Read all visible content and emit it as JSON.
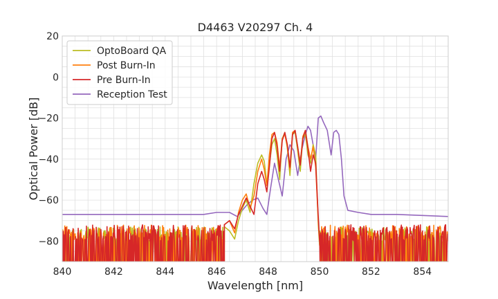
{
  "chart_data": {
    "type": "line",
    "title": "D4463 V20297 Ch. 4",
    "xlabel": "Wavelength [nm]",
    "ylabel": "Optical Power [dB]",
    "xlim": [
      840,
      855
    ],
    "ylim": [
      -90,
      20
    ],
    "xticks": [
      "840",
      "842",
      "844",
      "846",
      "848",
      "850",
      "852",
      "854"
    ],
    "yticks": [
      "20",
      "0",
      "−20",
      "−40",
      "−60",
      "−80"
    ],
    "grid": true,
    "legend_position": "top-left",
    "series": [
      {
        "name": "OptoBoard QA",
        "color": "#bcbd22",
        "noise": {
          "x_start": 840,
          "x_end": 846.3,
          "y_low": -90,
          "y_high": -73
        },
        "x": [
          846.3,
          846.5,
          846.7,
          846.85,
          847.0,
          847.15,
          847.3,
          847.45,
          847.6,
          847.75,
          847.85,
          847.95,
          848.05,
          848.15,
          848.25,
          848.35,
          848.45,
          848.55,
          848.65,
          848.75,
          848.85,
          848.95,
          849.05,
          849.15,
          849.25,
          849.35,
          849.45,
          849.55,
          849.65,
          849.75,
          849.85,
          849.95,
          850.0
        ],
        "y": [
          -73,
          -75,
          -79,
          -70,
          -64,
          -60,
          -66,
          -52,
          -42,
          -38,
          -41,
          -52,
          -43,
          -33,
          -30,
          -38,
          -50,
          -30,
          -27,
          -35,
          -48,
          -28,
          -27,
          -36,
          -46,
          -30,
          -28,
          -38,
          -42,
          -33,
          -38,
          -72,
          -82
        ],
        "noise_after": {
          "x_start": 850.0,
          "x_end": 855,
          "y_low": -90,
          "y_high": -73
        }
      },
      {
        "name": "Post Burn-In",
        "color": "#ff7f0e",
        "noise": {
          "x_start": 840,
          "x_end": 846.3,
          "y_low": -90,
          "y_high": -72
        },
        "x": [
          846.3,
          846.5,
          846.7,
          846.85,
          847.0,
          847.15,
          847.3,
          847.45,
          847.6,
          847.75,
          847.85,
          847.95,
          848.05,
          848.15,
          848.25,
          848.35,
          848.45,
          848.55,
          848.65,
          848.75,
          848.85,
          848.95,
          849.05,
          849.15,
          849.25,
          849.35,
          849.45,
          849.55,
          849.65,
          849.75,
          849.85,
          849.95,
          850.0
        ],
        "y": [
          -72,
          -70,
          -76,
          -66,
          -60,
          -57,
          -64,
          -58,
          -46,
          -40,
          -45,
          -53,
          -38,
          -28,
          -27,
          -32,
          -44,
          -30,
          -28,
          -34,
          -45,
          -27,
          -26,
          -34,
          -42,
          -29,
          -26,
          -34,
          -40,
          -34,
          -44,
          -70,
          -80
        ],
        "noise_after": {
          "x_start": 850.0,
          "x_end": 855,
          "y_low": -90,
          "y_high": -72
        }
      },
      {
        "name": "Pre Burn-In",
        "color": "#d62728",
        "noise": {
          "x_start": 840,
          "x_end": 846.3,
          "y_low": -90,
          "y_high": -72
        },
        "x": [
          846.3,
          846.5,
          846.7,
          846.85,
          847.0,
          847.15,
          847.3,
          847.45,
          847.6,
          847.75,
          847.85,
          847.95,
          848.05,
          848.15,
          848.25,
          848.35,
          848.45,
          848.55,
          848.65,
          848.75,
          848.85,
          848.95,
          849.05,
          849.15,
          849.25,
          849.35,
          849.45,
          849.55,
          849.65,
          849.75,
          849.85,
          849.95,
          850.0
        ],
        "y": [
          -72,
          -70,
          -74,
          -67,
          -63,
          -59,
          -63,
          -67,
          -52,
          -46,
          -50,
          -56,
          -44,
          -30,
          -27,
          -34,
          -46,
          -31,
          -27,
          -33,
          -44,
          -28,
          -26,
          -34,
          -43,
          -30,
          -26,
          -35,
          -46,
          -38,
          -42,
          -68,
          -80
        ],
        "noise_after": {
          "x_start": 850.0,
          "x_end": 855,
          "y_low": -90,
          "y_high": -72
        }
      },
      {
        "name": "Reception Test",
        "color": "#9467bd",
        "x": [
          840,
          841,
          842,
          843,
          844,
          845,
          845.5,
          846.0,
          846.5,
          846.8,
          847.0,
          847.2,
          847.4,
          847.6,
          847.8,
          847.95,
          848.1,
          848.25,
          848.4,
          848.55,
          848.7,
          848.85,
          849.0,
          849.15,
          849.3,
          849.45,
          849.55,
          849.65,
          849.75,
          849.85,
          849.95,
          850.05,
          850.15,
          850.3,
          850.45,
          850.55,
          850.65,
          850.75,
          850.85,
          850.95,
          851.1,
          851.5,
          852,
          853,
          854,
          855
        ],
        "y": [
          -67,
          -67,
          -67,
          -67,
          -67,
          -67,
          -67,
          -66,
          -66,
          -68,
          -65,
          -62,
          -60,
          -59,
          -64,
          -67,
          -54,
          -42,
          -50,
          -58,
          -40,
          -33,
          -36,
          -48,
          -36,
          -28,
          -24,
          -26,
          -33,
          -40,
          -20,
          -19,
          -22,
          -26,
          -38,
          -27,
          -26,
          -28,
          -40,
          -58,
          -65,
          -66,
          -67,
          -67,
          -67.5,
          -68
        ]
      }
    ]
  }
}
